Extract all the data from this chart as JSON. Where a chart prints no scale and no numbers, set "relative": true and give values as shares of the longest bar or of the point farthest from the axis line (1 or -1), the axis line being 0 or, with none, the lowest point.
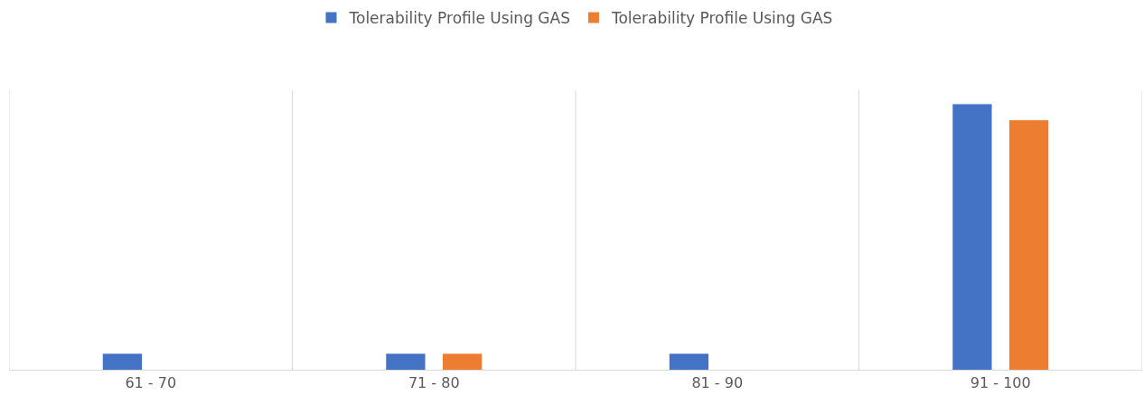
{
  "chart_data": {
    "type": "bar",
    "relative": true,
    "categories": [
      "61 - 70",
      "71 - 80",
      "81 - 90",
      "91 - 100"
    ],
    "series": [
      {
        "name": "Tolerability Profile Using GAS",
        "color": "#4472c4",
        "values": [
          0.06,
          0.06,
          0.06,
          1
        ]
      },
      {
        "name": "Tolerability Profile Using GAS",
        "color": "#ed7d31",
        "values": [
          null,
          0.06,
          null,
          0.94
        ]
      }
    ],
    "legend": "top",
    "grid": "x"
  }
}
